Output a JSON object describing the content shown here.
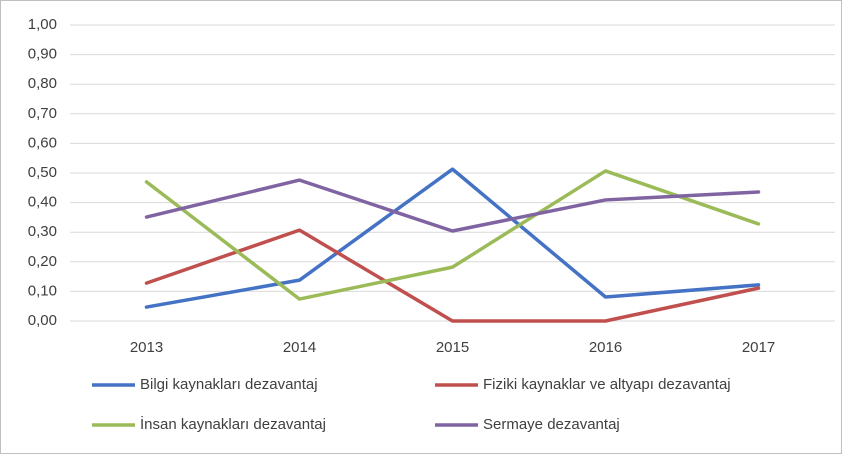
{
  "chart_data": {
    "type": "line",
    "categories": [
      "2013",
      "2014",
      "2015",
      "2016",
      "2017"
    ],
    "series": [
      {
        "name": "Bilgi kaynakları dezavantaj",
        "color": "#4472c4",
        "values": [
          0.047,
          0.138,
          0.513,
          0.081,
          0.122
        ]
      },
      {
        "name": "Fiziki kaynaklar ve altyapı dezavantaj",
        "color": "#c0504d",
        "values": [
          0.128,
          0.307,
          0,
          0,
          0.111
        ]
      },
      {
        "name": "İnsan kaynakları dezavantaj",
        "color": "#9bbb59",
        "values": [
          0.47,
          0.074,
          0.182,
          0.507,
          0.328
        ]
      },
      {
        "name": "Sermaye dezavantaj",
        "color": "#8064a2",
        "values": [
          0.351,
          0.476,
          0.304,
          0.409,
          0.436
        ]
      }
    ],
    "ylim": [
      0,
      1
    ],
    "yticks": [
      {
        "value": 0,
        "label": "0,00"
      },
      {
        "value": 0.1,
        "label": "0,10"
      },
      {
        "value": 0.2,
        "label": "0,20"
      },
      {
        "value": 0.3,
        "label": "0,30"
      },
      {
        "value": 0.4,
        "label": "0,40"
      },
      {
        "value": 0.5,
        "label": "0,50"
      },
      {
        "value": 0.6,
        "label": "0,60"
      },
      {
        "value": 0.7,
        "label": "0,70"
      },
      {
        "value": 0.8,
        "label": "0,80"
      },
      {
        "value": 0.9,
        "label": "0,90"
      },
      {
        "value": 1,
        "label": "1,00"
      }
    ],
    "grid": true,
    "legend": "bottom"
  }
}
